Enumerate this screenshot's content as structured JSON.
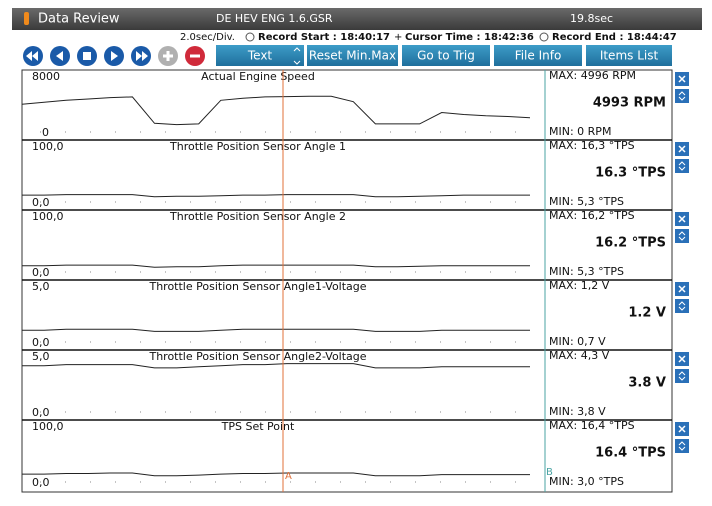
{
  "header": {
    "title": "Data Review",
    "vehicle": "DE HEV ENG 1.6.GSR",
    "duration": "19.8sec"
  },
  "info": {
    "time_div": "2.0sec/Div.",
    "record_start": "Record Start : 18:40:17",
    "cursor_time": "Cursor Time : 18:42:36",
    "record_end": "Record End : 18:44:47"
  },
  "toolbar": {
    "buttons": [
      "Text",
      "Reset Min.Max",
      "Go to Trig",
      "File Info",
      "Items List"
    ]
  },
  "cursors": {
    "a": "A",
    "b": "B"
  },
  "panels": [
    {
      "name": "Actual Engine Speed",
      "scale_top": 8000,
      "scale_bottom": 0,
      "max": "MAX:  4996 RPM",
      "current": "4993 RPM",
      "min": "MIN:    0 RPM",
      "trace": [
        3800,
        4100,
        4400,
        4600,
        4800,
        4900,
        1000,
        800,
        900,
        4400,
        4700,
        4900,
        4950,
        4990,
        4990,
        4200,
        900,
        900,
        900,
        2600,
        2300,
        2100,
        2000,
        1800
      ]
    },
    {
      "name": "Throttle Position Sensor Angle 1",
      "scale_top": {
        "value": 100,
        "label": "100,0"
      },
      "scale_bottom": {
        "value": 0,
        "label": "0,0"
      },
      "max": "MAX:  16,3 °TPS",
      "current": "16.3 °TPS",
      "min": "MIN:  5,3 °TPS",
      "trace": [
        9,
        9,
        10,
        10,
        10,
        10,
        6,
        7,
        7,
        8,
        9,
        9,
        10,
        10,
        10,
        10,
        6,
        6,
        7,
        8,
        9,
        9,
        9,
        9
      ]
    },
    {
      "name": "Throttle Position Sensor Angle 2",
      "scale_top": {
        "value": 100,
        "label": "100,0"
      },
      "scale_bottom": {
        "value": 0,
        "label": "0,0"
      },
      "max": "MAX:  16,2 °TPS",
      "current": "16.2 °TPS",
      "min": "MIN:  5,3 °TPS",
      "trace": [
        8,
        8,
        9,
        9,
        9,
        9,
        5,
        6,
        6,
        8,
        9,
        9,
        9,
        9,
        9,
        9,
        6,
        6,
        7,
        8,
        8,
        8,
        8,
        8
      ]
    },
    {
      "name": "Throttle Position Sensor Angle1-Voltage",
      "scale_top": {
        "value": 5,
        "label": "5,0"
      },
      "scale_bottom": {
        "value": 0,
        "label": "0,0"
      },
      "max": "MAX:   1,2 V",
      "current": "1.2 V",
      "min": "MIN:  0,7 V",
      "trace": [
        0.9,
        0.9,
        1,
        1,
        1,
        1,
        0.8,
        0.8,
        0.8,
        0.9,
        1,
        1,
        1,
        1,
        1,
        1,
        0.8,
        0.8,
        0.8,
        0.9,
        0.9,
        0.9,
        0.9,
        0.9
      ]
    },
    {
      "name": "Throttle Position Sensor Angle2-Voltage",
      "scale_top": {
        "value": 5,
        "label": "5,0"
      },
      "scale_bottom": {
        "value": 0,
        "label": "0,0"
      },
      "max": "MAX:   4,3 V",
      "current": "3.8 V",
      "min": "MIN:  3,8 V",
      "trace": [
        4.1,
        4.1,
        4.2,
        4.2,
        4.2,
        4.2,
        3.9,
        3.9,
        4,
        4.1,
        4.2,
        4.2,
        4.3,
        4.3,
        4.3,
        4.3,
        3.9,
        3.9,
        3.9,
        4,
        4,
        4,
        4,
        4
      ]
    },
    {
      "name": "TPS Set Point",
      "scale_top": {
        "value": 100,
        "label": "100,0"
      },
      "scale_bottom": {
        "value": 0,
        "label": "0,0"
      },
      "max": "MAX:  16,4 °TPS",
      "current": "16.4 °TPS",
      "min": "MIN:  3,0 °TPS",
      "trace": [
        11,
        11,
        12,
        12,
        13,
        13,
        8,
        8,
        9,
        11,
        12,
        12,
        13,
        13,
        13,
        13,
        8,
        8,
        8,
        10,
        10,
        10,
        10,
        10
      ]
    }
  ]
}
